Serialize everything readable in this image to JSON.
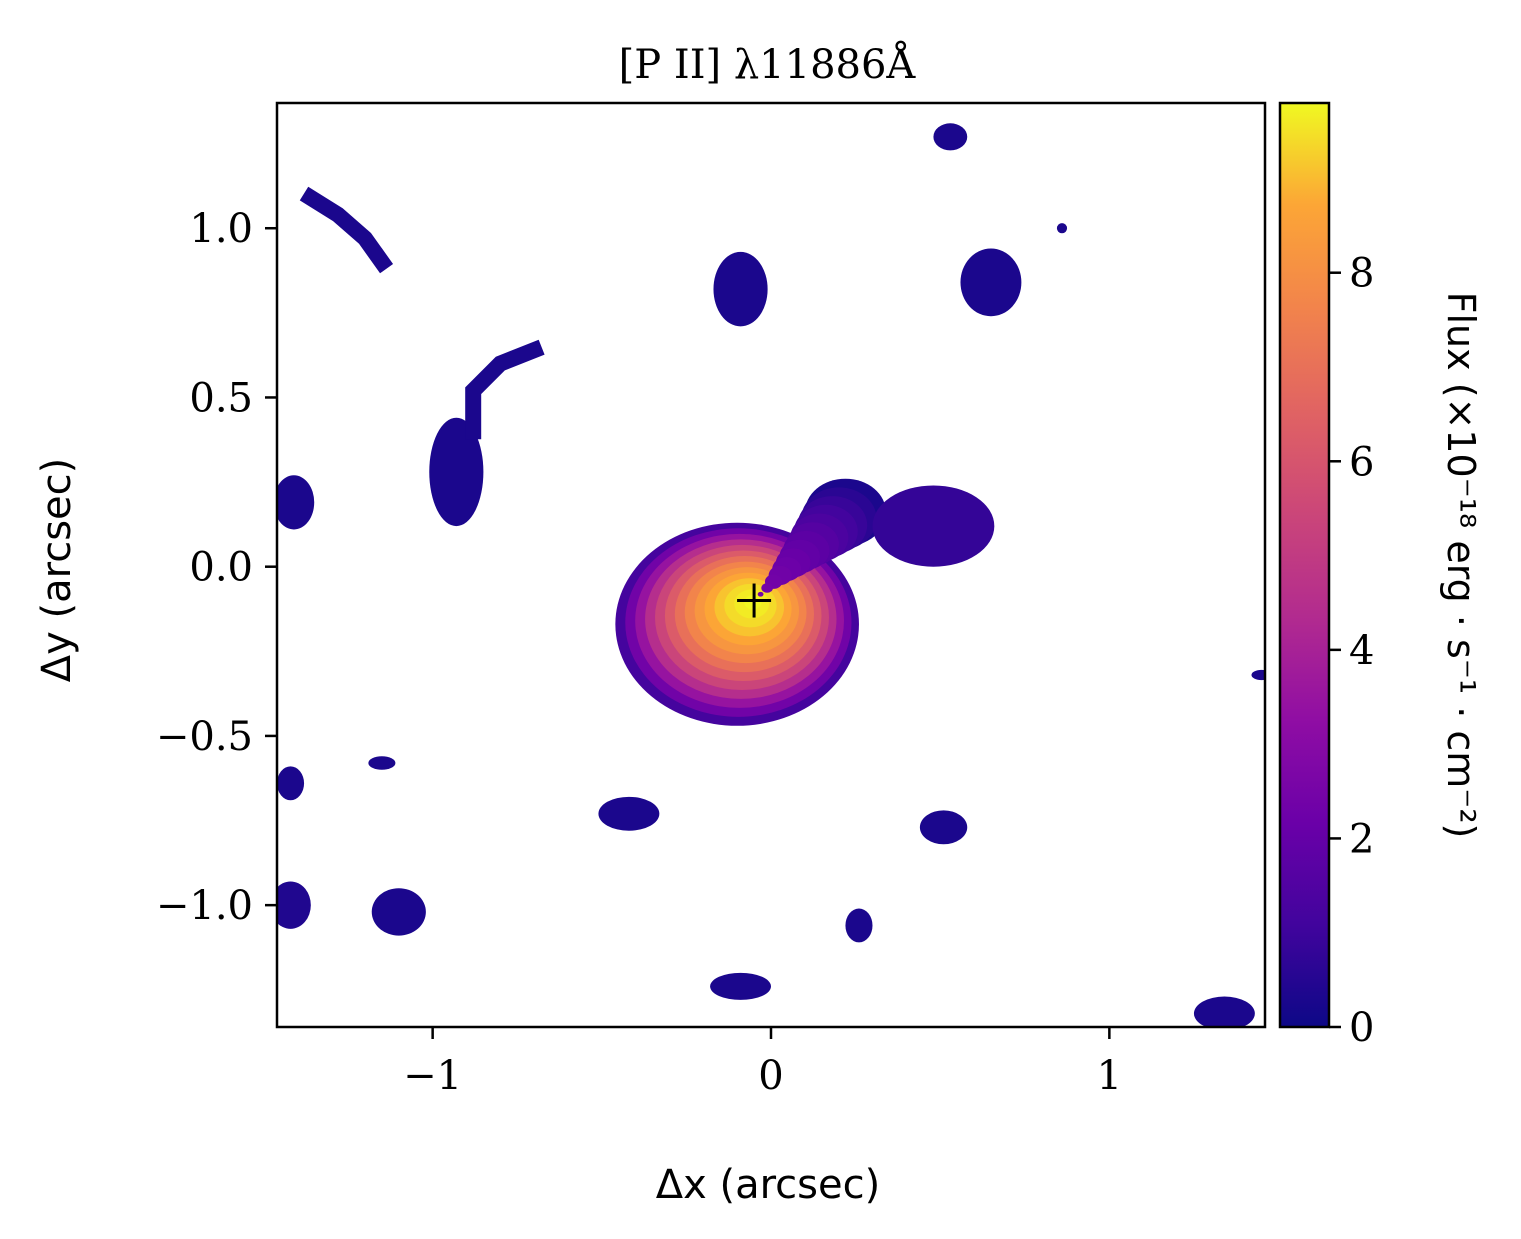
{
  "chart_data": {
    "type": "heatmap",
    "title": "[P II] λ11886Å",
    "xlabel": "Δx (arcsec)",
    "ylabel": "Δy (arcsec)",
    "xlim": [
      -1.46,
      1.46
    ],
    "ylim": [
      -1.36,
      1.37
    ],
    "xticks": [
      {
        "value": -1,
        "label": "−1"
      },
      {
        "value": 0,
        "label": "0"
      },
      {
        "value": 1,
        "label": "1"
      }
    ],
    "yticks": [
      {
        "value": 1.0,
        "label": "1.0"
      },
      {
        "value": 0.5,
        "label": "0.5"
      },
      {
        "value": 0.0,
        "label": "0.0"
      },
      {
        "value": -0.5,
        "label": "−0.5"
      },
      {
        "value": -1.0,
        "label": "−1.0"
      }
    ],
    "colormap": "plasma",
    "colorbar": {
      "label": "Flux (×10⁻¹⁸ erg · s⁻¹ · cm⁻²)",
      "range": [
        0,
        9.8
      ],
      "ticks": [
        {
          "value": 0,
          "label": "0"
        },
        {
          "value": 2,
          "label": "2"
        },
        {
          "value": 4,
          "label": "4"
        },
        {
          "value": 6,
          "label": "6"
        },
        {
          "value": 8,
          "label": "8"
        }
      ]
    },
    "peak": {
      "x": -0.05,
      "y": -0.1,
      "value": 9.8
    },
    "marker": {
      "type": "plus",
      "x": -0.05,
      "y": -0.1
    },
    "blobs": [
      {
        "x": -0.1,
        "y": -0.17,
        "rx": 0.36,
        "ry": 0.3,
        "value": 9.8
      },
      {
        "x": 0.22,
        "y": 0.16,
        "rx": 0.12,
        "ry": 0.1,
        "value": 2.5
      },
      {
        "x": 0.48,
        "y": 0.12,
        "rx": 0.18,
        "ry": 0.12,
        "value": 0.8
      },
      {
        "x": -0.09,
        "y": 0.82,
        "rx": 0.08,
        "ry": 0.11,
        "value": 0.3
      },
      {
        "x": 0.65,
        "y": 0.84,
        "rx": 0.09,
        "ry": 0.1,
        "value": 0.3
      },
      {
        "x": -0.93,
        "y": 0.28,
        "rx": 0.08,
        "ry": 0.16,
        "value": 0.3
      },
      {
        "x": -1.41,
        "y": 0.19,
        "rx": 0.06,
        "ry": 0.08,
        "value": 0.3
      },
      {
        "x": -0.42,
        "y": -0.73,
        "rx": 0.09,
        "ry": 0.05,
        "value": 0.3
      },
      {
        "x": 0.51,
        "y": -0.77,
        "rx": 0.07,
        "ry": 0.05,
        "value": 0.3
      },
      {
        "x": -1.1,
        "y": -1.02,
        "rx": 0.08,
        "ry": 0.07,
        "value": 0.3
      },
      {
        "x": -1.42,
        "y": -1.0,
        "rx": 0.06,
        "ry": 0.07,
        "value": 0.4
      },
      {
        "x": 0.26,
        "y": -1.06,
        "rx": 0.04,
        "ry": 0.05,
        "value": 0.3
      },
      {
        "x": -0.09,
        "y": -1.24,
        "rx": 0.09,
        "ry": 0.04,
        "value": 0.3
      },
      {
        "x": 1.34,
        "y": -1.32,
        "rx": 0.09,
        "ry": 0.05,
        "value": 0.3
      },
      {
        "x": 0.53,
        "y": 1.27,
        "rx": 0.05,
        "ry": 0.04,
        "value": 0.3
      },
      {
        "x": -1.15,
        "y": -0.58,
        "rx": 0.04,
        "ry": 0.02,
        "value": 0.3
      },
      {
        "x": -1.42,
        "y": -0.64,
        "rx": 0.04,
        "ry": 0.05,
        "value": 0.3
      },
      {
        "x": 1.45,
        "y": -0.32,
        "rx": 0.03,
        "ry": 0.015,
        "value": 0.3
      },
      {
        "x": 0.86,
        "y": 1.0,
        "rx": 0.015,
        "ry": 0.015,
        "value": 0.3
      }
    ],
    "streaks": [
      {
        "points": [
          [
            -1.36,
            1.09
          ],
          [
            -1.28,
            1.04
          ],
          [
            -1.2,
            0.97
          ],
          [
            -1.15,
            0.9
          ]
        ],
        "value": 0.3
      },
      {
        "points": [
          [
            -0.88,
            0.4
          ],
          [
            -0.88,
            0.52
          ],
          [
            -0.8,
            0.6
          ],
          [
            -0.7,
            0.64
          ]
        ],
        "value": 0.3
      }
    ]
  }
}
